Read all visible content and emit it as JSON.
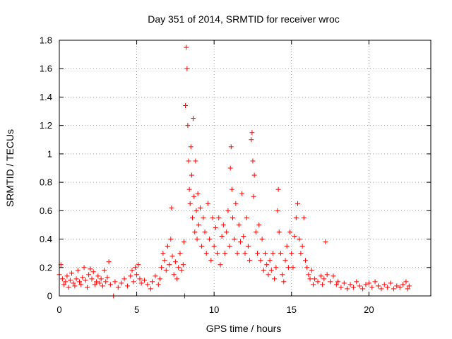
{
  "chart_data": {
    "type": "scatter",
    "title": "Day 351 of 2014, SRMTID for receiver wroc",
    "xlabel": "GPS time / hours",
    "ylabel": "SRMTID / TECUs",
    "xlim": [
      0,
      24
    ],
    "ylim": [
      0,
      1.8
    ],
    "xticks": [
      0,
      5,
      10,
      15,
      20
    ],
    "xtick_labels": [
      "0",
      "5",
      "10",
      "15",
      "20"
    ],
    "yticks": [
      0,
      0.2,
      0.4,
      0.6,
      0.8,
      1.0,
      1.2,
      1.4,
      1.6,
      1.8
    ],
    "ytick_labels": [
      "0",
      "0.2",
      "0.4",
      "0.6",
      "0.8",
      "1",
      "1.2",
      "1.4",
      "1.6",
      "1.8"
    ],
    "grid": true,
    "marker": "+",
    "series_color": "#ff0000",
    "series": [
      {
        "name": "SRMTID",
        "points": [
          [
            0.0,
            0.15
          ],
          [
            0.1,
            0.22
          ],
          [
            0.2,
            0.12
          ],
          [
            0.3,
            0.08
          ],
          [
            0.4,
            0.1
          ],
          [
            0.5,
            0.14
          ],
          [
            0.6,
            0.06
          ],
          [
            0.7,
            0.11
          ],
          [
            0.8,
            0.16
          ],
          [
            0.9,
            0.09
          ],
          [
            1.0,
            0.07
          ],
          [
            1.1,
            0.12
          ],
          [
            1.2,
            0.18
          ],
          [
            1.3,
            0.1
          ],
          [
            1.4,
            0.08
          ],
          [
            1.5,
            0.13
          ],
          [
            1.6,
            0.2
          ],
          [
            1.7,
            0.11
          ],
          [
            1.8,
            0.06
          ],
          [
            1.9,
            0.15
          ],
          [
            2.0,
            0.19
          ],
          [
            2.1,
            0.12
          ],
          [
            2.2,
            0.17
          ],
          [
            2.3,
            0.08
          ],
          [
            2.4,
            0.1
          ],
          [
            2.5,
            0.14
          ],
          [
            2.6,
            0.09
          ],
          [
            2.7,
            0.12
          ],
          [
            2.8,
            0.07
          ],
          [
            2.9,
            0.18
          ],
          [
            3.0,
            0.1
          ],
          [
            3.1,
            0.13
          ],
          [
            3.2,
            0.24
          ],
          [
            3.3,
            0.08
          ],
          [
            3.5,
            0.0
          ],
          [
            3.6,
            0.1
          ],
          [
            3.8,
            0.06
          ],
          [
            4.0,
            0.09
          ],
          [
            4.2,
            0.12
          ],
          [
            4.4,
            0.07
          ],
          [
            4.6,
            0.14
          ],
          [
            4.7,
            0.18
          ],
          [
            4.8,
            0.1
          ],
          [
            4.9,
            0.2
          ],
          [
            5.0,
            0.15
          ],
          [
            5.1,
            0.22
          ],
          [
            5.2,
            0.12
          ],
          [
            5.3,
            0.09
          ],
          [
            5.5,
            0.11
          ],
          [
            5.7,
            0.08
          ],
          [
            5.9,
            0.05
          ],
          [
            6.0,
            0.1
          ],
          [
            6.2,
            0.14
          ],
          [
            6.4,
            0.08
          ],
          [
            6.5,
            0.12
          ],
          [
            6.6,
            0.2
          ],
          [
            6.7,
            0.3
          ],
          [
            6.8,
            0.25
          ],
          [
            6.9,
            0.18
          ],
          [
            7.0,
            0.35
          ],
          [
            7.1,
            0.22
          ],
          [
            7.2,
            0.4
          ],
          [
            7.25,
            0.62
          ],
          [
            7.3,
            0.28
          ],
          [
            7.4,
            0.15
          ],
          [
            7.5,
            0.24
          ],
          [
            7.6,
            0.12
          ],
          [
            7.7,
            0.2
          ],
          [
            7.8,
            0.3
          ],
          [
            7.9,
            0.18
          ],
          [
            8.0,
            0.22
          ],
          [
            8.05,
            0.38
          ],
          [
            8.1,
            0.0
          ],
          [
            8.15,
            1.34
          ],
          [
            8.2,
            1.75
          ],
          [
            8.25,
            1.6
          ],
          [
            8.3,
            1.2
          ],
          [
            8.35,
            0.95
          ],
          [
            8.4,
            0.75
          ],
          [
            8.45,
            0.65
          ],
          [
            8.5,
            1.05
          ],
          [
            8.55,
            0.85
          ],
          [
            8.6,
            0.55
          ],
          [
            8.65,
            1.25
          ],
          [
            8.7,
            0.7
          ],
          [
            8.75,
            0.45
          ],
          [
            8.8,
            0.95
          ],
          [
            8.85,
            0.6
          ],
          [
            8.9,
            0.4
          ],
          [
            8.95,
            0.72
          ],
          [
            9.0,
            0.5
          ],
          [
            9.1,
            0.62
          ],
          [
            9.2,
            0.35
          ],
          [
            9.3,
            0.55
          ],
          [
            9.4,
            0.45
          ],
          [
            9.5,
            0.3
          ],
          [
            9.6,
            0.65
          ],
          [
            9.7,
            0.4
          ],
          [
            9.8,
            0.25
          ],
          [
            9.9,
            0.55
          ],
          [
            10.0,
            0.35
          ],
          [
            10.1,
            0.48
          ],
          [
            10.2,
            0.3
          ],
          [
            10.3,
            0.55
          ],
          [
            10.4,
            0.22
          ],
          [
            10.5,
            0.42
          ],
          [
            10.6,
            0.5
          ],
          [
            10.7,
            0.3
          ],
          [
            10.8,
            0.45
          ],
          [
            10.9,
            0.6
          ],
          [
            11.0,
            0.35
          ],
          [
            11.05,
            0.9
          ],
          [
            11.1,
            1.05
          ],
          [
            11.15,
            0.75
          ],
          [
            11.2,
            0.55
          ],
          [
            11.3,
            0.4
          ],
          [
            11.4,
            0.65
          ],
          [
            11.5,
            0.3
          ],
          [
            11.6,
            0.5
          ],
          [
            11.7,
            0.38
          ],
          [
            11.8,
            0.72
          ],
          [
            11.9,
            0.42
          ],
          [
            12.0,
            0.3
          ],
          [
            12.1,
            0.55
          ],
          [
            12.2,
            0.35
          ],
          [
            12.3,
            0.25
          ],
          [
            12.4,
            1.1
          ],
          [
            12.45,
            1.15
          ],
          [
            12.5,
            0.95
          ],
          [
            12.55,
            0.7
          ],
          [
            12.6,
            0.85
          ],
          [
            12.7,
            0.45
          ],
          [
            12.8,
            0.3
          ],
          [
            12.9,
            0.5
          ],
          [
            13.0,
            0.25
          ],
          [
            13.1,
            0.4
          ],
          [
            13.2,
            0.18
          ],
          [
            13.3,
            0.3
          ],
          [
            13.4,
            0.22
          ],
          [
            13.5,
            0.15
          ],
          [
            13.6,
            0.25
          ],
          [
            13.7,
            0.18
          ],
          [
            13.8,
            0.3
          ],
          [
            13.9,
            0.12
          ],
          [
            14.0,
            0.2
          ],
          [
            14.1,
            0.6
          ],
          [
            14.15,
            0.75
          ],
          [
            14.2,
            0.45
          ],
          [
            14.3,
            0.3
          ],
          [
            14.4,
            0.15
          ],
          [
            14.5,
            0.1
          ],
          [
            14.6,
            0.25
          ],
          [
            14.7,
            0.35
          ],
          [
            14.8,
            0.2
          ],
          [
            14.9,
            0.45
          ],
          [
            15.0,
            0.3
          ],
          [
            15.1,
            0.2
          ],
          [
            15.2,
            0.42
          ],
          [
            15.3,
            0.55
          ],
          [
            15.4,
            0.65
          ],
          [
            15.5,
            0.4
          ],
          [
            15.6,
            0.3
          ],
          [
            15.7,
            0.35
          ],
          [
            15.8,
            0.55
          ],
          [
            15.9,
            0.25
          ],
          [
            16.0,
            0.2
          ],
          [
            16.1,
            0.15
          ],
          [
            16.2,
            0.12
          ],
          [
            16.3,
            0.18
          ],
          [
            16.4,
            0.08
          ],
          [
            16.5,
            0.12
          ],
          [
            16.7,
            0.1
          ],
          [
            16.9,
            0.14
          ],
          [
            17.0,
            0.08
          ],
          [
            17.1,
            0.12
          ],
          [
            17.2,
            0.38
          ],
          [
            17.3,
            0.15
          ],
          [
            17.5,
            0.1
          ],
          [
            17.7,
            0.14
          ],
          [
            17.9,
            0.08
          ],
          [
            18.0,
            0.1
          ],
          [
            18.2,
            0.06
          ],
          [
            18.4,
            0.09
          ],
          [
            18.6,
            0.05
          ],
          [
            18.8,
            0.08
          ],
          [
            19.0,
            0.06
          ],
          [
            19.2,
            0.1
          ],
          [
            19.4,
            0.07
          ],
          [
            19.6,
            0.05
          ],
          [
            19.8,
            0.08
          ],
          [
            20.0,
            0.09
          ],
          [
            20.2,
            0.06
          ],
          [
            20.4,
            0.1
          ],
          [
            20.6,
            0.07
          ],
          [
            20.8,
            0.05
          ],
          [
            21.0,
            0.08
          ],
          [
            21.2,
            0.06
          ],
          [
            21.4,
            0.09
          ],
          [
            21.6,
            0.05
          ],
          [
            21.8,
            0.07
          ],
          [
            22.0,
            0.06
          ],
          [
            22.2,
            0.08
          ],
          [
            22.4,
            0.1
          ],
          [
            22.5,
            0.05
          ],
          [
            22.6,
            0.07
          ]
        ]
      }
    ]
  }
}
